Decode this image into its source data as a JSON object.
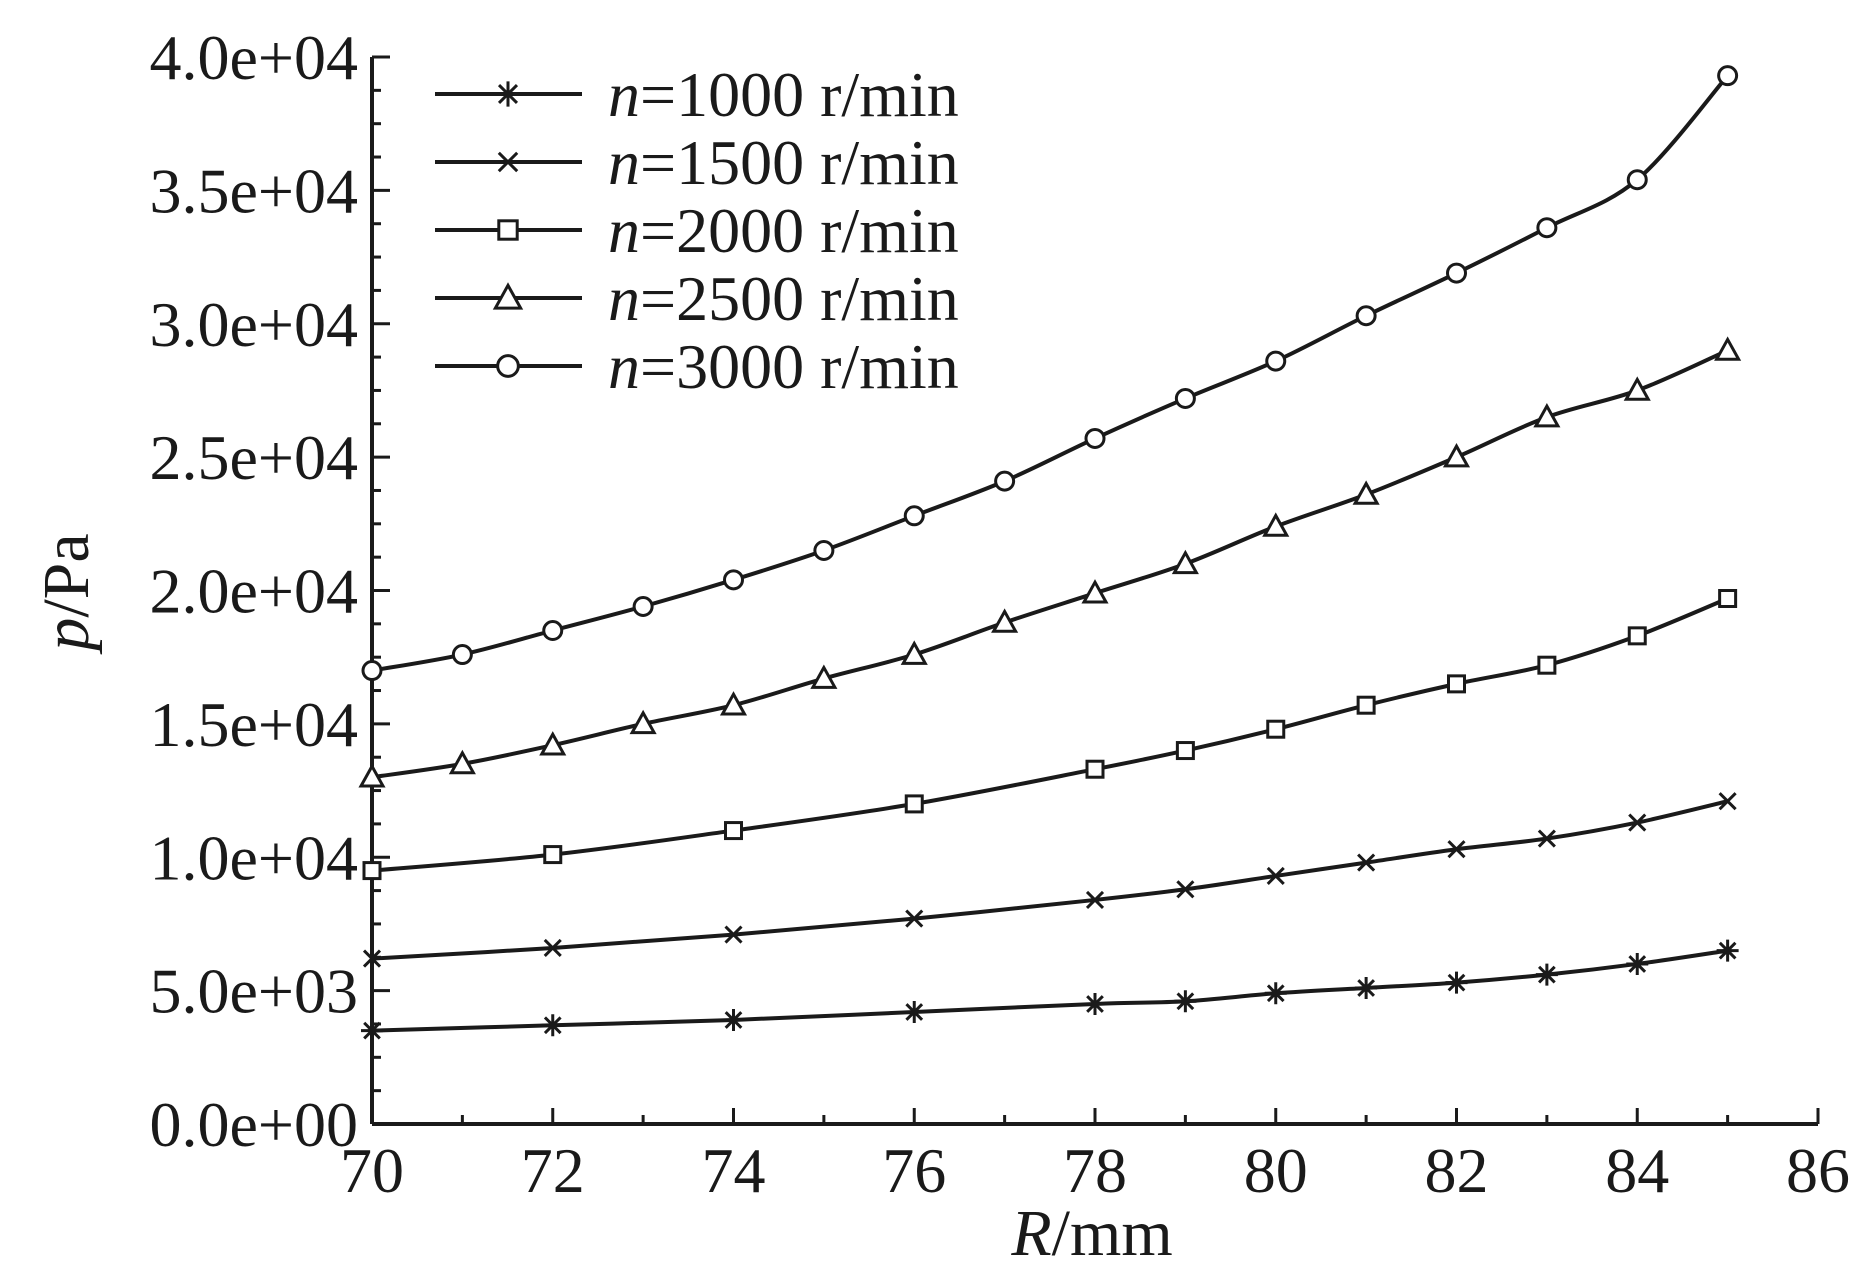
{
  "chart_data": {
    "type": "line",
    "title": "",
    "xlabel": {
      "var": "R",
      "unit": "/mm"
    },
    "ylabel": {
      "var": "p",
      "unit": "/Pa"
    },
    "xlim": [
      70,
      86
    ],
    "ylim": [
      0,
      40000
    ],
    "xticks": [
      "70",
      "72",
      "74",
      "76",
      "78",
      "80",
      "82",
      "84",
      "86"
    ],
    "yticks": [
      "0.0e+00",
      "5.0e+03",
      "1.0e+04",
      "1.5e+04",
      "2.0e+04",
      "2.5e+04",
      "3.0e+04",
      "3.5e+04",
      "4.0e+04"
    ],
    "grid": false,
    "legend_position": "top-left",
    "series": [
      {
        "legend_var": "n",
        "legend_text": "=1000 r/min",
        "marker": "asterisk",
        "x": [
          70,
          72,
          74,
          76,
          78,
          79,
          80,
          81,
          82,
          83,
          84,
          85
        ],
        "y": [
          3500,
          3700,
          3900,
          4200,
          4500,
          4600,
          4900,
          5100,
          5300,
          5600,
          6000,
          6500
        ]
      },
      {
        "legend_var": "n",
        "legend_text": "=1500 r/min",
        "marker": "cross",
        "x": [
          70,
          72,
          74,
          76,
          78,
          79,
          80,
          81,
          82,
          83,
          84,
          85
        ],
        "y": [
          6200,
          6600,
          7100,
          7700,
          8400,
          8800,
          9300,
          9800,
          10300,
          10700,
          11300,
          12100
        ]
      },
      {
        "legend_var": "n",
        "legend_text": "=2000 r/min",
        "marker": "square",
        "x": [
          70,
          72,
          74,
          76,
          78,
          79,
          80,
          81,
          82,
          83,
          84,
          85
        ],
        "y": [
          9500,
          10100,
          11000,
          12000,
          13300,
          14000,
          14800,
          15700,
          16500,
          17200,
          18300,
          19700
        ]
      },
      {
        "legend_var": "n",
        "legend_text": "=2500 r/min",
        "marker": "triangle",
        "x": [
          70,
          71,
          72,
          73,
          74,
          75,
          76,
          77,
          78,
          79,
          80,
          81,
          82,
          83,
          84,
          85
        ],
        "y": [
          13000,
          13500,
          14200,
          15000,
          15700,
          16700,
          17600,
          18800,
          19900,
          21000,
          22400,
          23600,
          25000,
          26500,
          27500,
          29000
        ]
      },
      {
        "legend_var": "n",
        "legend_text": "=3000 r/min",
        "marker": "circle",
        "x": [
          70,
          71,
          72,
          73,
          74,
          75,
          76,
          77,
          78,
          79,
          80,
          81,
          82,
          83,
          84,
          85
        ],
        "y": [
          17000,
          17600,
          18500,
          19400,
          20400,
          21500,
          22800,
          24100,
          25700,
          27200,
          28600,
          30300,
          31900,
          33600,
          35400,
          39300
        ]
      }
    ],
    "colors": {
      "line": "#1a1a1a",
      "background": "#ffffff"
    }
  }
}
